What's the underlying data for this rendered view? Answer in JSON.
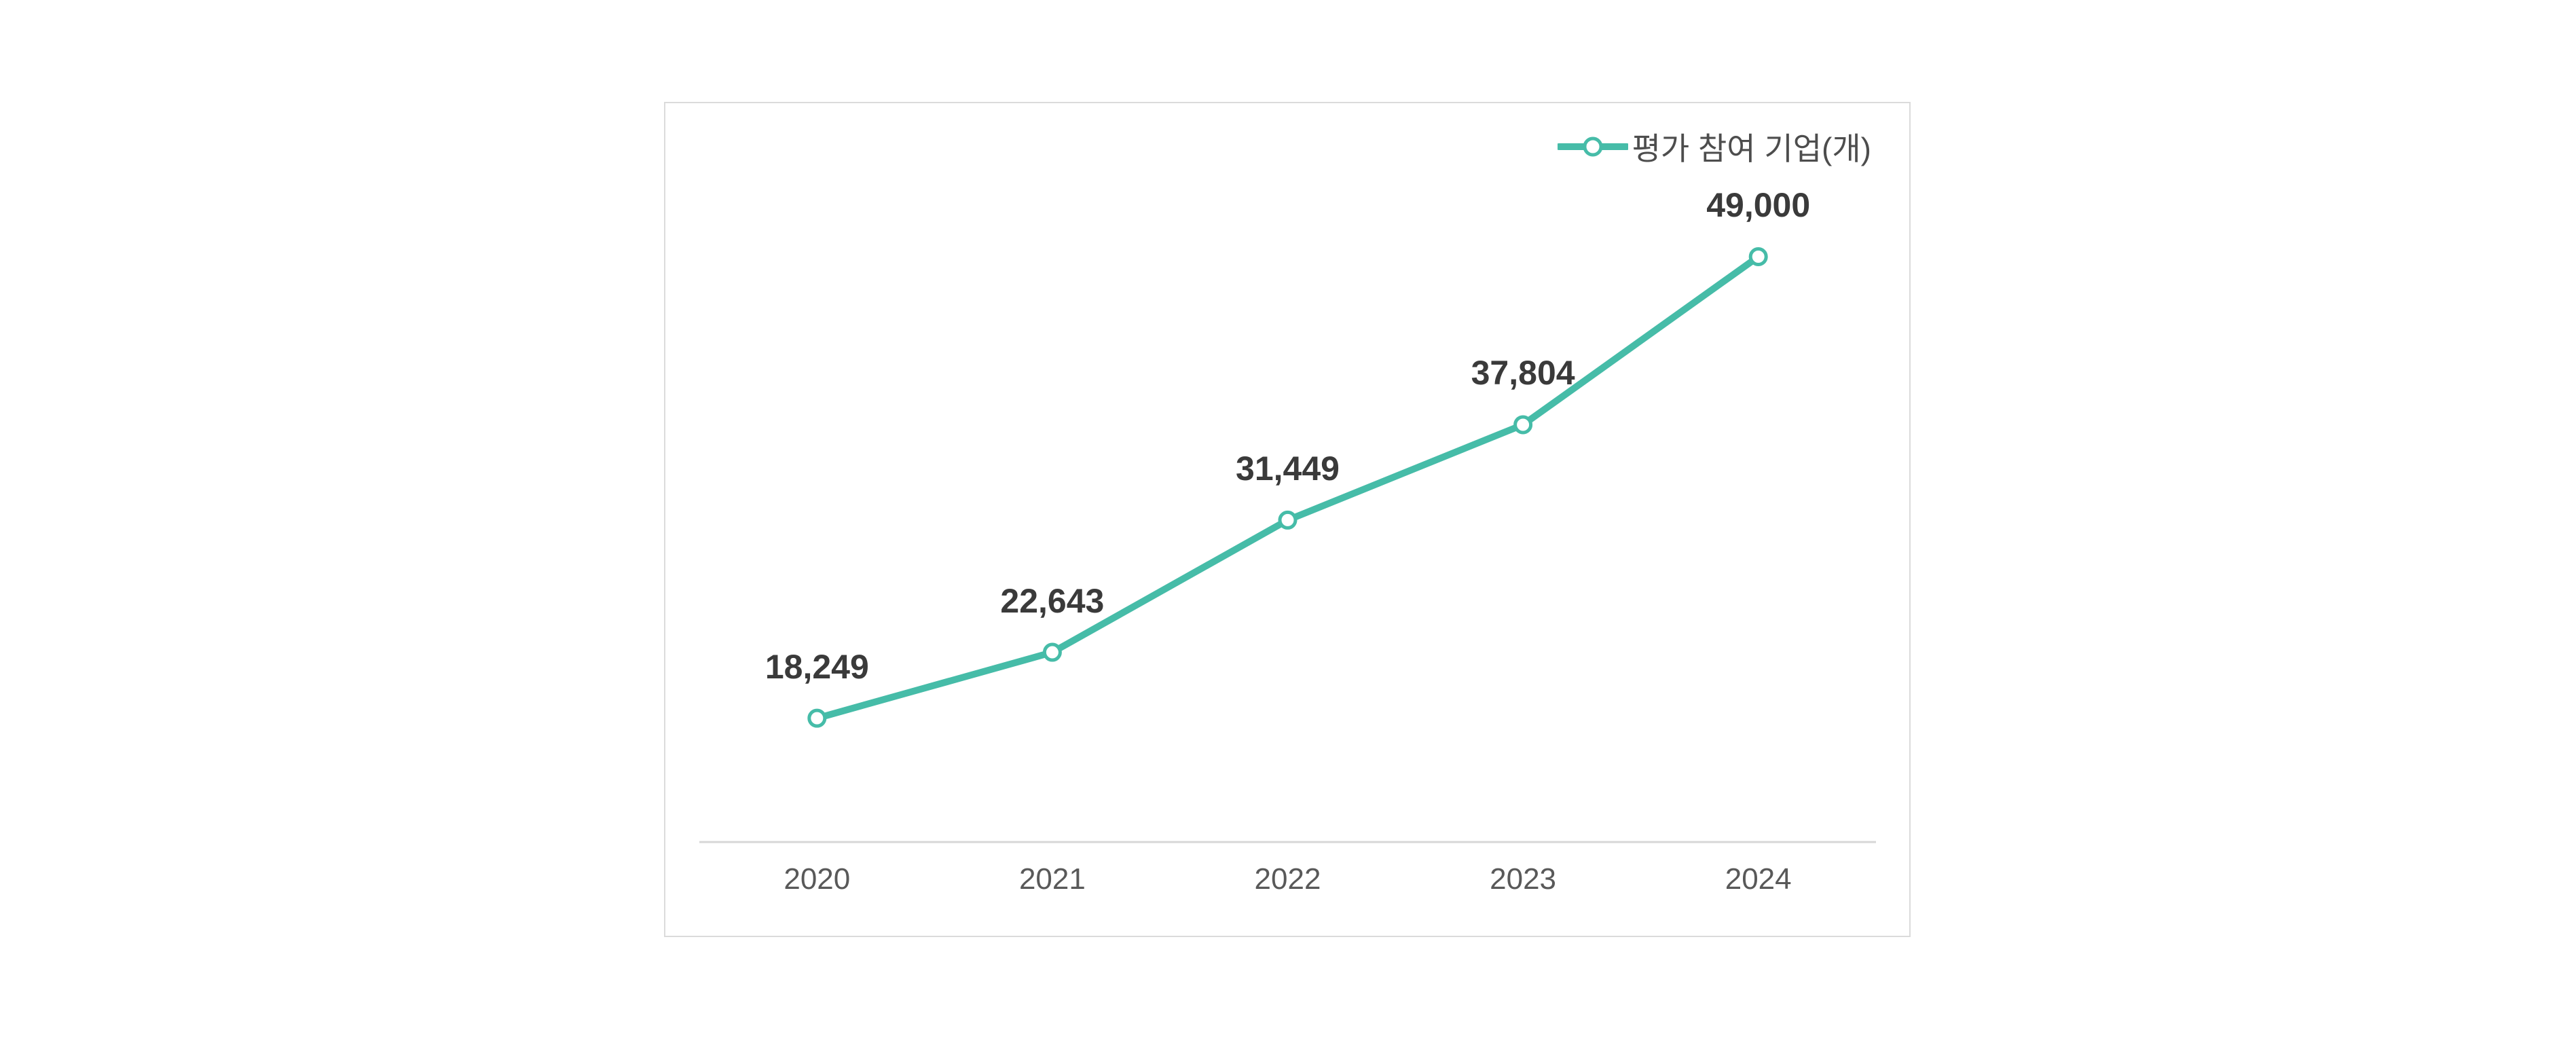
{
  "chart_data": {
    "type": "line",
    "title": "",
    "xlabel": "",
    "ylabel": "",
    "legend": "평가 참여 기업(개)",
    "legend_position": "top-right",
    "categories": [
      "2020",
      "2021",
      "2022",
      "2023",
      "2024"
    ],
    "series": [
      {
        "name": "평가 참여 기업(개)",
        "values": [
          18249,
          22643,
          31449,
          37804,
          49000
        ]
      }
    ],
    "values": [
      18249,
      22643,
      31449,
      37804,
      49000
    ],
    "data_labels": [
      "18,249",
      "22,643",
      "31,449",
      "37,804",
      "49,000"
    ],
    "ylim": [
      10000,
      59000
    ],
    "grid": false,
    "y_axis_visible": false,
    "x_axis_line_visible": true,
    "marker_style": "open-circle",
    "colors": {
      "line": "#46bca8",
      "marker_fill": "#ffffff",
      "data_label": "#3a3a3a",
      "tick_label": "#595959",
      "legend_text": "#4d4d4d",
      "card_border": "#dbdbdb",
      "axis_line": "#d7d7d7",
      "background": "#ffffff"
    }
  }
}
